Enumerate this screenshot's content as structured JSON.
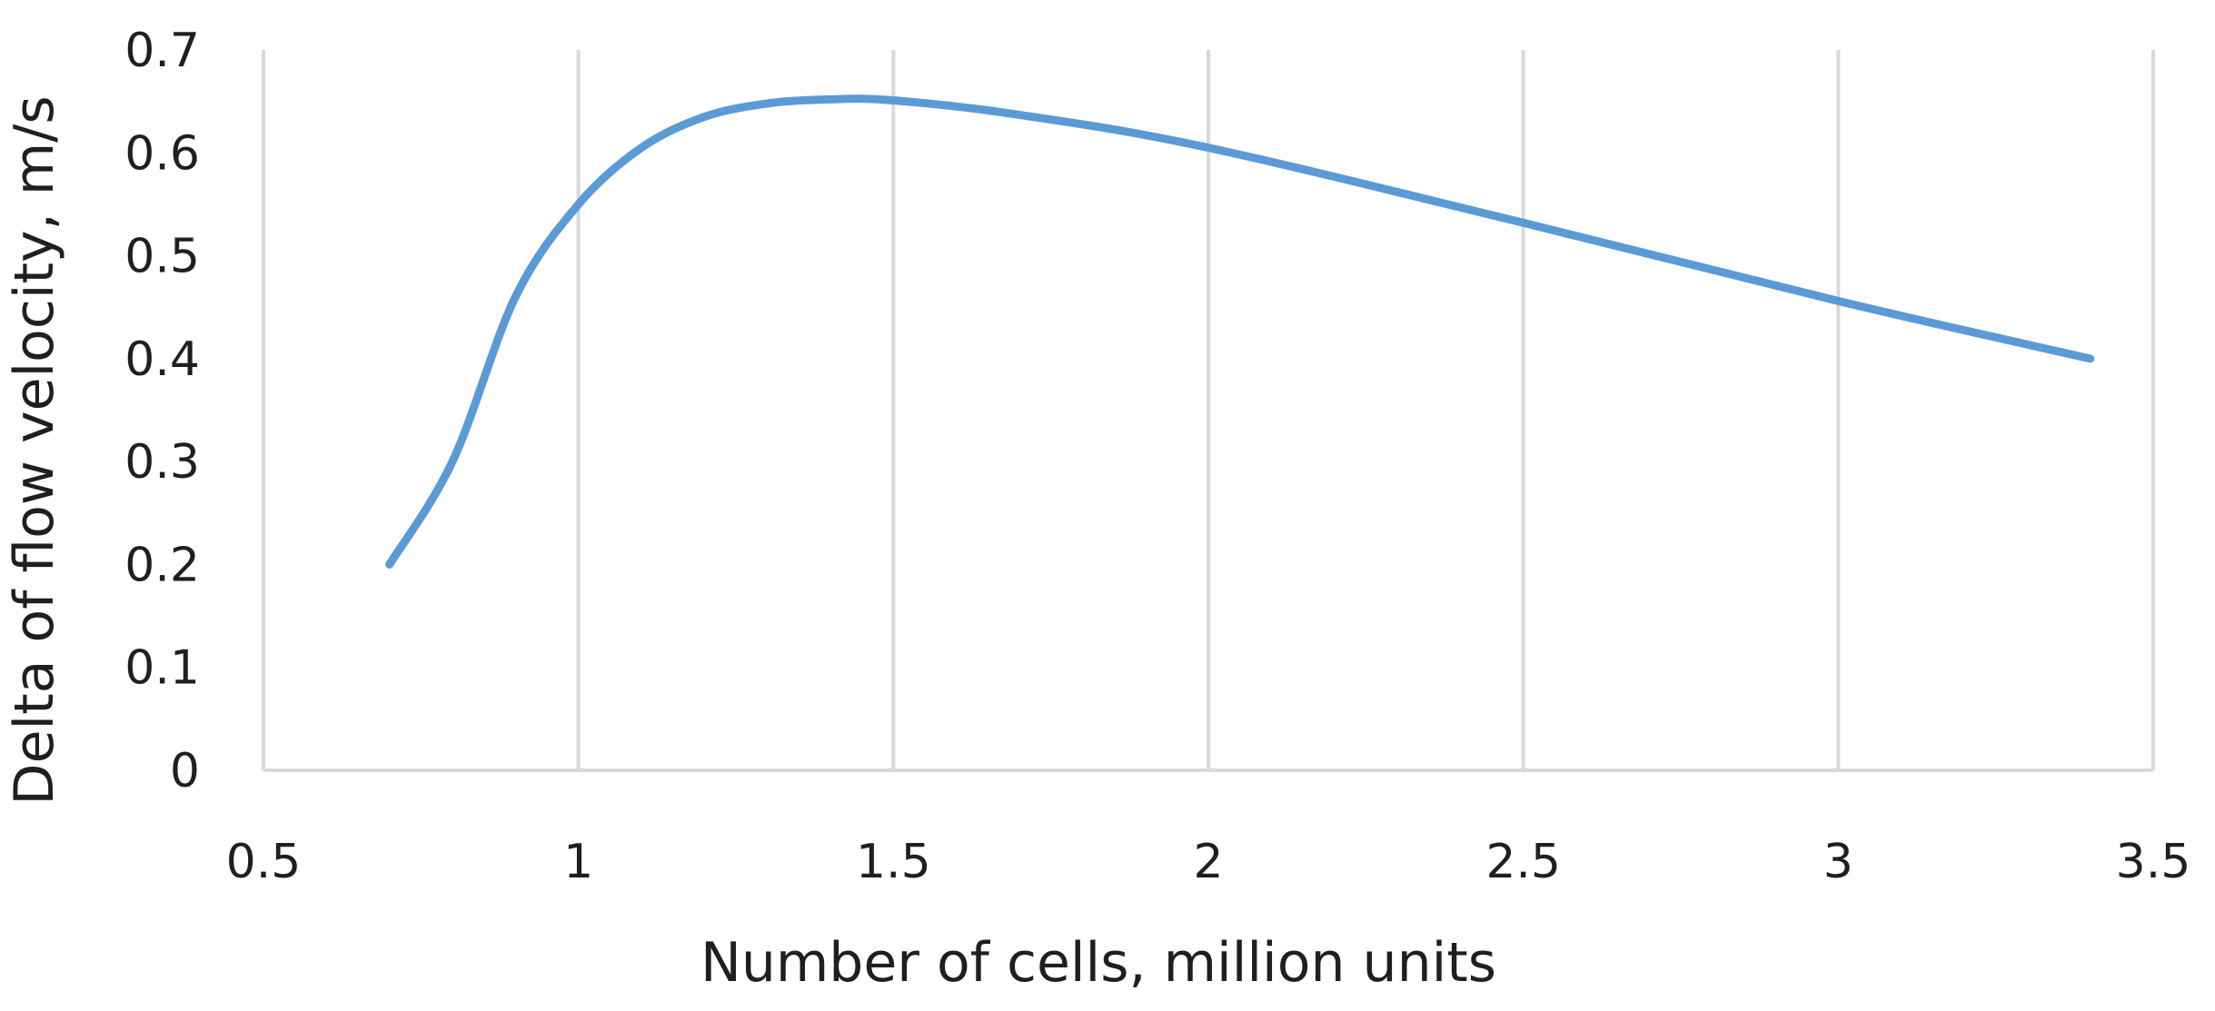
{
  "chart_data": {
    "type": "line",
    "title": "",
    "xlabel": "Number of cells, million units",
    "ylabel": "Delta of flow velocity, m/s",
    "xlim": [
      0.5,
      3.5
    ],
    "ylim": [
      0,
      0.7
    ],
    "x_ticks": [
      "0.5",
      "1",
      "1.5",
      "2",
      "2.5",
      "3",
      "3.5"
    ],
    "y_ticks": [
      "0",
      "0.1",
      "0.2",
      "0.3",
      "0.4",
      "0.5",
      "0.6",
      "0.7"
    ],
    "grid": "vertical",
    "legend": "none",
    "line_color": "#5b9bd5",
    "series": [
      {
        "x": [
          0.7,
          0.8,
          0.9,
          1.0,
          1.1,
          1.2,
          1.3,
          1.4,
          1.5,
          1.7,
          2.0,
          2.5,
          3.0,
          3.4
        ],
        "y": [
          0.2,
          0.3,
          0.46,
          0.55,
          0.605,
          0.635,
          0.648,
          0.652,
          0.651,
          0.637,
          0.605,
          0.532,
          0.456,
          0.4
        ]
      }
    ]
  }
}
